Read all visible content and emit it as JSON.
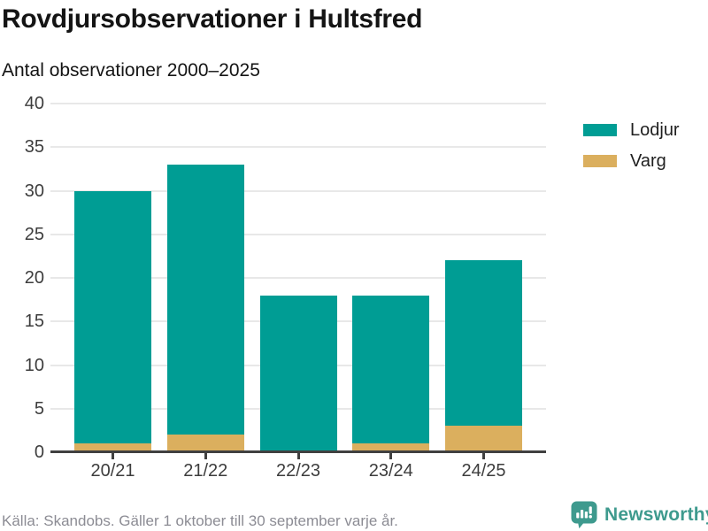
{
  "title": "Rovdjursobservationer i Hultsfred",
  "subtitle": "Antal observationer 2000–2025",
  "footer": {
    "source": "Källa: Skandobs. Gäller 1 oktober till 30 september varje år.",
    "brand": "Newsworthy"
  },
  "colors": {
    "lodjur": "#009D94",
    "varg": "#DBAF5E",
    "gridline": "#E8E8E8",
    "axis": "#404040",
    "axis_labels": "#3D3D3D",
    "text": "#141414",
    "footer_text": "#8C8C94",
    "brand_teal": "#3E9A8E"
  },
  "chart_data": {
    "type": "bar",
    "stacked": true,
    "title": "Rovdjursobservationer i Hultsfred",
    "subtitle": "Antal observationer 2000–2025",
    "categories": [
      "20/21",
      "21/22",
      "22/23",
      "23/24",
      "24/25"
    ],
    "series": [
      {
        "name": "Lodjur",
        "color": "#009D94",
        "values": [
          29,
          31,
          18,
          17,
          19
        ]
      },
      {
        "name": "Varg",
        "color": "#DBAF5E",
        "values": [
          1,
          2,
          0,
          1,
          3
        ]
      }
    ],
    "stack_totals": [
      30,
      33,
      18,
      18,
      22
    ],
    "xlabel": "",
    "ylabel": "",
    "ylim": [
      0,
      40
    ],
    "ytick_step": 5,
    "grid": true,
    "legend_position": "right",
    "source_note": "Källa: Skandobs. Gäller 1 oktober till 30 september varje år."
  }
}
